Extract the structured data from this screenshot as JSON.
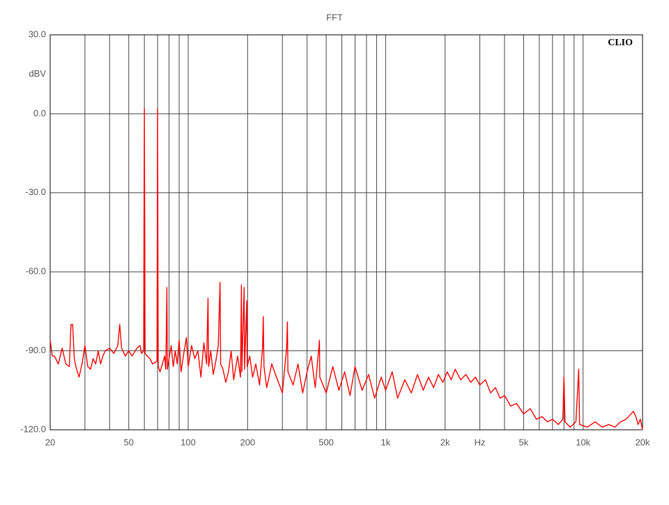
{
  "chart_data": {
    "type": "line",
    "title": "FFT",
    "watermark": "CLIO",
    "ylabel": "dBV",
    "log_x": true,
    "grid": true,
    "xlim": [
      20,
      20000
    ],
    "ylim": [
      -120,
      30
    ],
    "xticks": [
      20,
      50,
      100,
      200,
      500,
      {
        "value": 1000,
        "label": "1k"
      },
      {
        "value": 2000,
        "label": "2k"
      },
      {
        "value": 3000,
        "label": "Hz"
      },
      {
        "value": 5000,
        "label": "5k"
      },
      {
        "value": 10000,
        "label": "10k"
      },
      {
        "value": 20000,
        "label": "20k"
      }
    ],
    "x_minor_ticks": [
      30,
      40,
      60,
      70,
      80,
      90,
      300,
      400,
      600,
      700,
      800,
      900,
      4000,
      6000,
      7000,
      8000,
      9000
    ],
    "yticks": [
      {
        "value": 30,
        "label": "30.0"
      },
      {
        "value": 0,
        "label": "0.0"
      },
      {
        "value": -30,
        "label": "-30.0"
      },
      {
        "value": -60,
        "label": "-60.0"
      },
      {
        "value": -90,
        "label": "-90.0"
      },
      {
        "value": -120,
        "label": "-120.0"
      }
    ],
    "x": [
      20,
      20.5,
      21,
      22,
      23,
      24,
      25,
      25.5,
      26,
      26.5,
      27,
      28,
      29,
      30,
      31,
      32,
      33,
      34,
      35,
      36,
      37,
      38,
      40,
      42,
      44,
      45,
      46,
      48,
      50,
      52,
      55,
      57,
      58,
      59.5,
      60,
      60.5,
      62,
      64,
      66,
      69.5,
      70,
      70.5,
      72,
      74,
      76,
      77,
      78,
      78.5,
      80,
      82,
      84,
      86,
      88,
      90,
      92,
      95,
      98,
      100,
      104,
      108,
      112,
      116,
      120,
      124,
      126,
      127,
      130,
      134,
      138,
      142,
      145,
      146,
      150,
      155,
      160,
      165,
      170,
      178,
      184,
      186,
      187,
      192,
      193,
      198,
      199,
      205,
      212,
      220,
      230,
      238,
      240,
      242,
      250,
      265,
      280,
      300,
      315,
      318,
      320,
      340,
      360,
      380,
      400,
      420,
      440,
      460,
      462,
      464,
      500,
      540,
      580,
      620,
      660,
      700,
      760,
      820,
      880,
      950,
      1000,
      1080,
      1150,
      1250,
      1350,
      1450,
      1550,
      1650,
      1750,
      1850,
      1950,
      2050,
      2150,
      2250,
      2400,
      2550,
      2700,
      2850,
      3000,
      3200,
      3400,
      3600,
      3800,
      4000,
      4300,
      4600,
      5000,
      5400,
      5800,
      6200,
      6600,
      7000,
      7500,
      7900,
      8000,
      8100,
      8600,
      9200,
      9500,
      9600,
      10500,
      11500,
      12500,
      13500,
      14500,
      15500,
      16500,
      17500,
      18000,
      18500,
      19000,
      19500,
      20000
    ],
    "series": [
      {
        "name": "FFT",
        "color": "#ff0000",
        "values": [
          -86,
          -92,
          -92,
          -95,
          -89,
          -95,
          -96,
          -80,
          -80,
          -93,
          -96,
          -100,
          -95,
          -88,
          -96,
          -97,
          -93,
          -95,
          -90,
          -95,
          -92,
          -90,
          -89,
          -91,
          -88,
          -80,
          -89,
          -92,
          -90,
          -92,
          -89,
          -88,
          -91,
          -90,
          2,
          -91,
          -92,
          -93,
          -95,
          -94,
          2,
          -96,
          -98,
          -95,
          -92,
          -97,
          -66,
          -97,
          -93,
          -88,
          -96,
          -90,
          -95,
          -86,
          -98,
          -91,
          -85,
          -96,
          -88,
          -93,
          -90,
          -100,
          -87,
          -95,
          -70,
          -96,
          -90,
          -99,
          -94,
          -88,
          -64,
          -95,
          -97,
          -102,
          -98,
          -90,
          -101,
          -92,
          -100,
          -65,
          -98,
          -66,
          -97,
          -71,
          -96,
          -92,
          -100,
          -95,
          -103,
          -89,
          -77,
          -96,
          -104,
          -95,
          -100,
          -106,
          -89,
          -79,
          -98,
          -103,
          -95,
          -106,
          -98,
          -92,
          -104,
          -88,
          -86,
          -100,
          -106,
          -96,
          -105,
          -98,
          -107,
          -96,
          -105,
          -99,
          -108,
          -100,
          -105,
          -98,
          -108,
          -101,
          -106,
          -99,
          -105,
          -100,
          -104,
          -99,
          -102,
          -98,
          -101,
          -97,
          -101,
          -99,
          -102,
          -100,
          -103,
          -101,
          -106,
          -104,
          -108,
          -107,
          -111,
          -110,
          -114,
          -112,
          -116,
          -115,
          -117,
          -116,
          -118,
          -116,
          -100,
          -117,
          -119,
          -117,
          -97,
          -118,
          -119,
          -117,
          -119,
          -118,
          -119,
          -117,
          -116,
          -114,
          -113,
          -115,
          -118,
          -116,
          -120
        ]
      }
    ]
  }
}
